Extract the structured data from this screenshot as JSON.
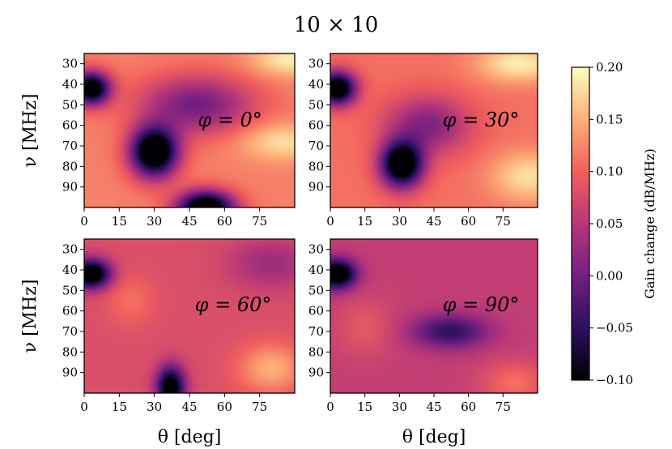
{
  "chart_data": {
    "type": "heatmap",
    "title": "10 × 10",
    "xlabel": "θ [deg]",
    "ylabel": "ν [MHz]",
    "x_ticks": [
      "0",
      "15",
      "30",
      "45",
      "60",
      "75"
    ],
    "y_ticks": [
      "30",
      "40",
      "50",
      "60",
      "70",
      "80",
      "90"
    ],
    "xlim": [
      0,
      90
    ],
    "ylim": [
      100,
      25
    ],
    "colorbar": {
      "label": "Gain change (dB/MHz)",
      "range": [
        -0.1,
        0.2
      ],
      "ticks": [
        "0.20",
        "0.15",
        "0.10",
        "0.05",
        "0.00",
        "−0.05",
        "−0.10"
      ],
      "colormap": "magma",
      "colors": [
        "#000004",
        "#2c115f",
        "#721f81",
        "#b73779",
        "#f1605d",
        "#feb078",
        "#fcfdbf"
      ]
    },
    "panels": [
      {
        "label": "φ = 0°",
        "baseline": 0.12,
        "features": [
          {
            "theta": 3,
            "nu": 42,
            "value": -0.14,
            "width_theta": 8,
            "width_nu": 8
          },
          {
            "theta": 30,
            "nu": 73,
            "value": -0.17,
            "width_theta": 10,
            "width_nu": 12
          },
          {
            "theta": 52,
            "nu": 100,
            "value": -0.16,
            "width_theta": 12,
            "width_nu": 8
          },
          {
            "theta": 48,
            "nu": 50,
            "value": 0.0,
            "width_theta": 24,
            "width_nu": 14
          },
          {
            "theta": 88,
            "nu": 28,
            "value": 0.19,
            "width_theta": 16,
            "width_nu": 8
          },
          {
            "theta": 85,
            "nu": 68,
            "value": 0.18,
            "width_theta": 18,
            "width_nu": 9
          }
        ]
      },
      {
        "label": "φ = 30°",
        "baseline": 0.11,
        "features": [
          {
            "theta": 3,
            "nu": 42,
            "value": -0.15,
            "width_theta": 8,
            "width_nu": 8
          },
          {
            "theta": 31,
            "nu": 79,
            "value": -0.16,
            "width_theta": 9,
            "width_nu": 11
          },
          {
            "theta": 42,
            "nu": 60,
            "value": 0.01,
            "width_theta": 18,
            "width_nu": 14
          },
          {
            "theta": 82,
            "nu": 30,
            "value": 0.19,
            "width_theta": 18,
            "width_nu": 9
          },
          {
            "theta": 86,
            "nu": 85,
            "value": 0.18,
            "width_theta": 16,
            "width_nu": 12
          }
        ]
      },
      {
        "label": "φ = 60°",
        "baseline": 0.08,
        "features": [
          {
            "theta": 3,
            "nu": 42,
            "value": -0.15,
            "width_theta": 8,
            "width_nu": 7
          },
          {
            "theta": 37,
            "nu": 97,
            "value": -0.13,
            "width_theta": 6,
            "width_nu": 10
          },
          {
            "theta": 20,
            "nu": 55,
            "value": 0.11,
            "width_theta": 10,
            "width_nu": 12
          },
          {
            "theta": 80,
            "nu": 37,
            "value": 0.03,
            "width_theta": 18,
            "width_nu": 12
          },
          {
            "theta": 80,
            "nu": 88,
            "value": 0.15,
            "width_theta": 14,
            "width_nu": 12
          }
        ]
      },
      {
        "label": "φ = 90°",
        "baseline": 0.06,
        "features": [
          {
            "theta": 3,
            "nu": 42,
            "value": -0.15,
            "width_theta": 8,
            "width_nu": 7
          },
          {
            "theta": 52,
            "nu": 70,
            "value": -0.05,
            "width_theta": 16,
            "width_nu": 8
          },
          {
            "theta": 15,
            "nu": 68,
            "value": 0.09,
            "width_theta": 12,
            "width_nu": 14
          },
          {
            "theta": 80,
            "nu": 95,
            "value": 0.11,
            "width_theta": 14,
            "width_nu": 10
          }
        ]
      }
    ]
  }
}
